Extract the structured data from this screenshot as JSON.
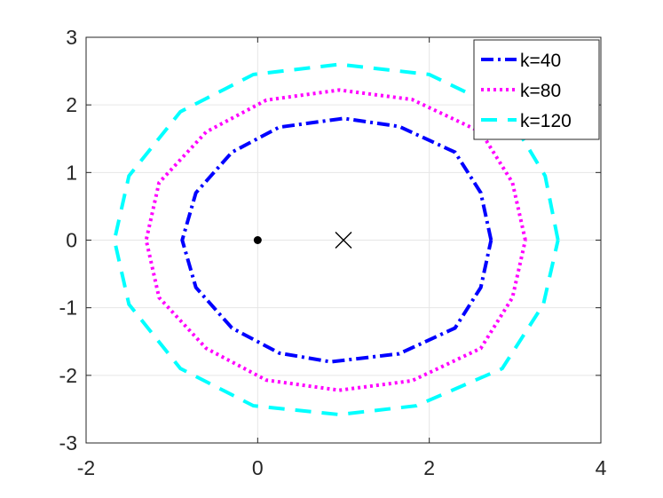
{
  "chart_data": {
    "type": "line",
    "title": "",
    "xlabel": "",
    "ylabel": "",
    "xlim": [
      -2,
      4
    ],
    "ylim": [
      -3,
      3
    ],
    "xticks": [
      -2,
      0,
      2,
      4
    ],
    "yticks": [
      -3,
      -2,
      -1,
      0,
      1,
      2,
      3
    ],
    "xtick_labels": [
      "-2",
      "0",
      "2",
      "4"
    ],
    "ytick_labels": [
      "-3",
      "-2",
      "-1",
      "0",
      "1",
      "2",
      "3"
    ],
    "grid": true,
    "legend_position": "top-right",
    "series": [
      {
        "name": "k=40",
        "color": "#0000ff",
        "style": "dash-dot",
        "points": [
          [
            2.72,
            0.0
          ],
          [
            2.6,
            0.7
          ],
          [
            2.3,
            1.3
          ],
          [
            1.65,
            1.68
          ],
          [
            1.0,
            1.8
          ],
          [
            0.25,
            1.67
          ],
          [
            -0.3,
            1.3
          ],
          [
            -0.72,
            0.7
          ],
          [
            -0.88,
            0.0
          ],
          [
            -0.72,
            -0.7
          ],
          [
            -0.3,
            -1.3
          ],
          [
            0.25,
            -1.67
          ],
          [
            0.85,
            -1.8
          ],
          [
            1.65,
            -1.68
          ],
          [
            2.3,
            -1.3
          ],
          [
            2.6,
            -0.7
          ],
          [
            2.72,
            0.0
          ]
        ]
      },
      {
        "name": "k=80",
        "color": "#ff00ff",
        "style": "dotted",
        "points": [
          [
            3.12,
            0.0
          ],
          [
            2.97,
            0.85
          ],
          [
            2.6,
            1.6
          ],
          [
            1.8,
            2.08
          ],
          [
            0.95,
            2.22
          ],
          [
            0.1,
            2.07
          ],
          [
            -0.6,
            1.6
          ],
          [
            -1.15,
            0.85
          ],
          [
            -1.3,
            0.0
          ],
          [
            -1.15,
            -0.85
          ],
          [
            -0.6,
            -1.6
          ],
          [
            0.1,
            -2.07
          ],
          [
            0.95,
            -2.22
          ],
          [
            1.8,
            -2.08
          ],
          [
            2.6,
            -1.6
          ],
          [
            2.97,
            -0.85
          ],
          [
            3.12,
            0.0
          ]
        ]
      },
      {
        "name": "k=120",
        "color": "#00ffff",
        "style": "dashed",
        "points": [
          [
            3.5,
            0.0
          ],
          [
            3.35,
            0.95
          ],
          [
            2.9,
            1.9
          ],
          [
            2.0,
            2.45
          ],
          [
            0.95,
            2.6
          ],
          [
            -0.05,
            2.45
          ],
          [
            -0.9,
            1.9
          ],
          [
            -1.5,
            0.95
          ],
          [
            -1.67,
            0.0
          ],
          [
            -1.5,
            -0.95
          ],
          [
            -0.9,
            -1.9
          ],
          [
            -0.05,
            -2.45
          ],
          [
            0.95,
            -2.58
          ],
          [
            1.85,
            -2.45
          ],
          [
            2.85,
            -1.9
          ],
          [
            3.33,
            -0.95
          ],
          [
            3.5,
            0.0
          ]
        ]
      }
    ],
    "markers": [
      {
        "type": "dot",
        "x": 0,
        "y": 0,
        "color": "#000000"
      },
      {
        "type": "cross",
        "x": 1,
        "y": 0,
        "color": "#000000"
      }
    ]
  }
}
